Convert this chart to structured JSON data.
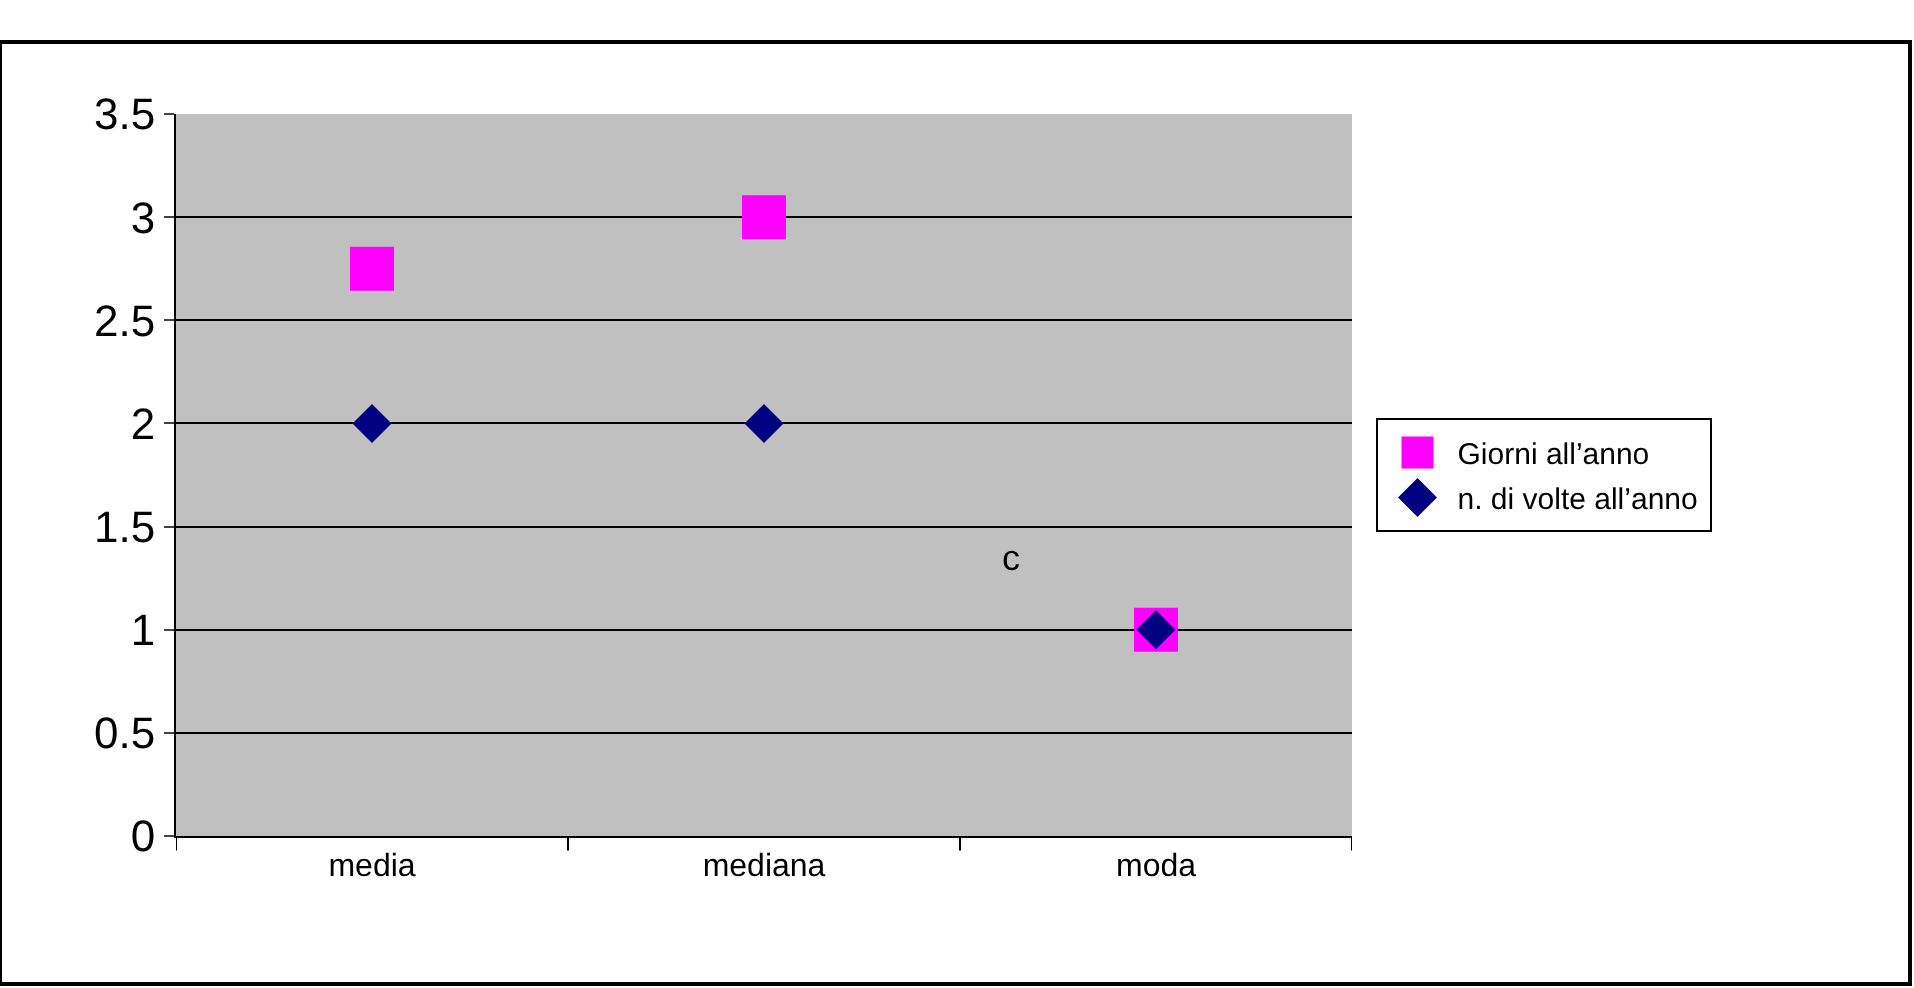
{
  "chart_data": {
    "type": "scatter",
    "categories": [
      "media",
      "mediana",
      "moda"
    ],
    "series": [
      {
        "name": "Giorni all’anno",
        "color": "#ff00ff",
        "values": [
          2.75,
          3,
          1
        ],
        "marker": "square"
      },
      {
        "name": "n. di volte all’anno",
        "color": "#000080",
        "values": [
          2,
          2,
          1
        ],
        "marker": "diamond"
      }
    ],
    "ylim": [
      0,
      3.5
    ],
    "yticks": [
      0,
      0.5,
      1,
      1.5,
      2,
      2.5,
      3,
      3.5
    ],
    "grid": "y",
    "legend": "right",
    "annotations": [
      "c"
    ]
  }
}
